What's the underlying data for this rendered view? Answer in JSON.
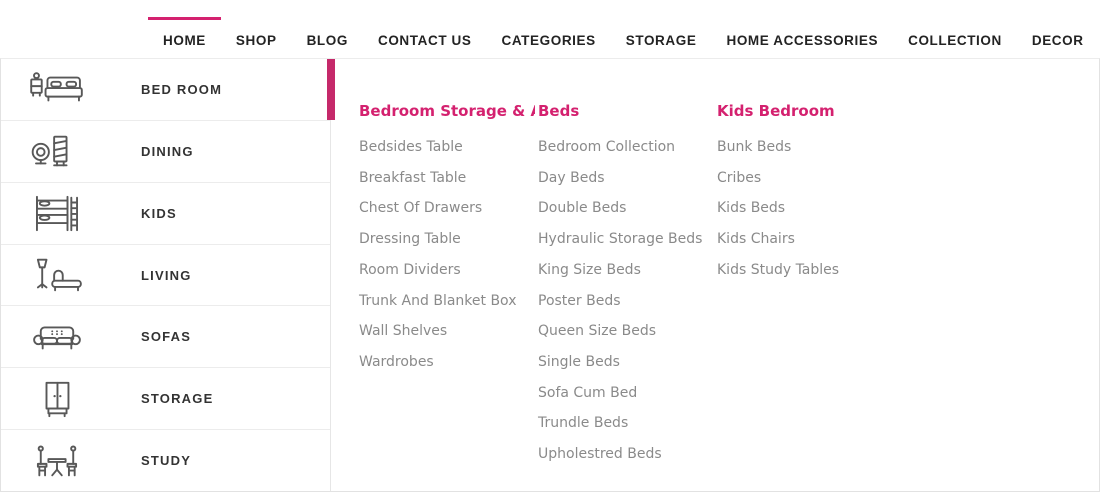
{
  "colors": {
    "accent": "#d4216f",
    "accent_bar": "#c5296a"
  },
  "nav": {
    "items": [
      {
        "label": "HOME",
        "active": true
      },
      {
        "label": "SHOP",
        "active": false
      },
      {
        "label": "BLOG",
        "active": false
      },
      {
        "label": "CONTACT US",
        "active": false
      },
      {
        "label": "CATEGORIES",
        "active": false
      },
      {
        "label": "STORAGE",
        "active": false
      },
      {
        "label": "HOME ACCESSORIES",
        "active": false
      },
      {
        "label": "COLLECTION",
        "active": false
      },
      {
        "label": "DECOR",
        "active": false
      }
    ]
  },
  "sidebar": {
    "items": [
      {
        "label": "BED ROOM",
        "icon": "bedroom-icon",
        "active": true
      },
      {
        "label": "DINING",
        "icon": "dining-icon",
        "active": false
      },
      {
        "label": "KIDS",
        "icon": "kids-icon",
        "active": false
      },
      {
        "label": "LIVING",
        "icon": "living-icon",
        "active": false
      },
      {
        "label": "SOFAS",
        "icon": "sofas-icon",
        "active": false
      },
      {
        "label": "STORAGE",
        "icon": "storage-icon",
        "active": false
      },
      {
        "label": "STUDY",
        "icon": "study-icon",
        "active": false
      }
    ]
  },
  "menu": {
    "columns": [
      {
        "title": "Bedroom Storage & A…",
        "items": [
          "Bedsides Table",
          "Breakfast Table",
          "Chest Of Drawers",
          "Dressing Table",
          "Room Dividers",
          "Trunk And Blanket Box",
          "Wall Shelves",
          "Wardrobes"
        ]
      },
      {
        "title": "Beds",
        "items": [
          "Bedroom Collection",
          "Day Beds",
          "Double Beds",
          "Hydraulic Storage Beds",
          "King Size Beds",
          "Poster Beds",
          "Queen Size Beds",
          "Single Beds",
          "Sofa Cum Bed",
          "Trundle Beds",
          "Upholestred Beds"
        ]
      },
      {
        "title": "Kids Bedroom",
        "items": [
          "Bunk Beds",
          "Cribes",
          "Kids Beds",
          "Kids Chairs",
          "Kids Study Tables"
        ]
      }
    ]
  }
}
